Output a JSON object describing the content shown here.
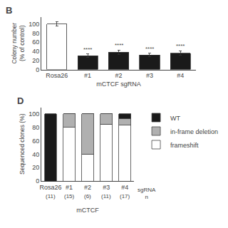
{
  "chart_data": [
    {
      "type": "bar",
      "title": "B",
      "categories": [
        "Rosa26",
        "#1",
        "#2",
        "#3",
        "#4"
      ],
      "values": [
        100,
        30,
        38,
        32,
        36
      ],
      "errors": [
        5,
        4,
        5,
        4,
        5
      ],
      "colors": [
        "#ffffff",
        "#1a1a1a",
        "#1a1a1a",
        "#1a1a1a",
        "#1a1a1a"
      ],
      "ylabel": "Colony number\n(% of control)",
      "xlabel": "mCTCF sgRNA",
      "ylim": [
        0,
        115
      ],
      "yticks": [
        0,
        20,
        40,
        60,
        80,
        100
      ],
      "grid": false,
      "annotations": [
        {
          "category": "#1",
          "text": "****"
        },
        {
          "category": "#2",
          "text": "****"
        },
        {
          "category": "#3",
          "text": "****"
        },
        {
          "category": "#4",
          "text": "****"
        }
      ]
    },
    {
      "type": "bar",
      "stacked": true,
      "title": "D",
      "categories": [
        "Rosa26",
        "#1",
        "#2",
        "#3",
        "#4"
      ],
      "series": [
        {
          "name": "frameshift",
          "color": "#ffffff",
          "values": [
            0,
            80,
            40,
            85,
            83
          ]
        },
        {
          "name": "in-frame deletion",
          "color": "#b0b0b0",
          "values": [
            0,
            20,
            60,
            15,
            10
          ]
        },
        {
          "name": "WT",
          "color": "#1a1a1a",
          "values": [
            100,
            0,
            0,
            0,
            7
          ]
        }
      ],
      "ylabel": "Sequenced clones (%)",
      "xlabel": "mCTCF",
      "ylim": [
        0,
        110
      ],
      "yticks": [
        0,
        20,
        40,
        60,
        80,
        100
      ],
      "grid": false,
      "legend": "right",
      "annotations": [
        {
          "category": "Rosa26",
          "text": "(11)"
        },
        {
          "category": "#1",
          "text": "(15)"
        },
        {
          "category": "#2",
          "text": "(6)"
        },
        {
          "category": "#3",
          "text": "(11)"
        },
        {
          "category": "#4",
          "text": "(17)"
        },
        {
          "text": "sgRNA\nn"
        }
      ]
    }
  ]
}
